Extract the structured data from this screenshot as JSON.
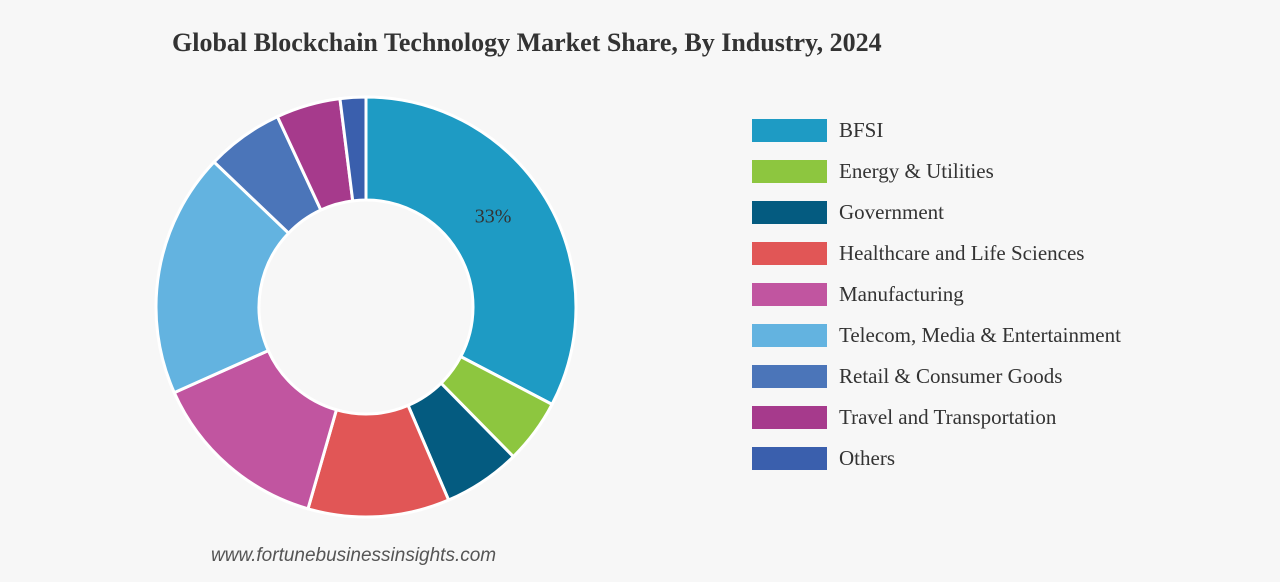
{
  "chart_data": {
    "type": "pie",
    "title": "Global Blockchain Technology Market Share, By Industry, 2024",
    "variant": "donut",
    "categories": [
      "BFSI",
      "Energy & Utilities",
      "Government",
      "Healthcare and Life Sciences",
      "Manufacturing",
      "Telecom, Media & Entertainment",
      "Retail & Consumer Goods",
      "Travel and Transportation",
      "Others"
    ],
    "values": [
      33,
      5,
      6,
      11,
      14,
      19,
      6,
      5,
      2
    ],
    "colors": [
      "#1e9bc4",
      "#8dc63f",
      "#045b80",
      "#e15656",
      "#c155a0",
      "#63b3e0",
      "#4b75b9",
      "#a63a8c",
      "#3a5fad"
    ],
    "data_labels": [
      {
        "category": "BFSI",
        "text": "33%"
      }
    ],
    "legend_position": "right"
  },
  "source": "www.fortunebusinessinsights.com"
}
